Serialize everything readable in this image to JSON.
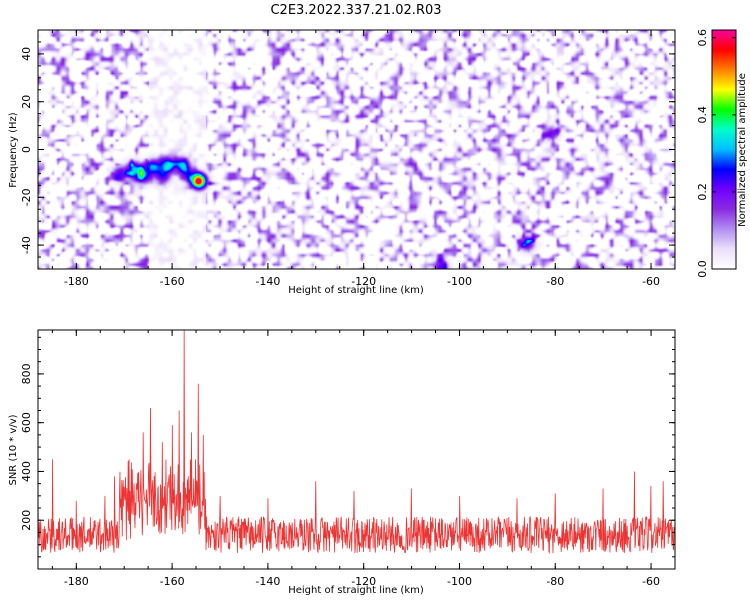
{
  "title": "C2E3.2022.337.21.02.R03",
  "chart_data": [
    {
      "type": "heatmap",
      "xlabel": "Height of straight line (km)",
      "ylabel": "Frequency (Hz)",
      "xlim": [
        -188,
        -55
      ],
      "ylim": [
        -50,
        50
      ],
      "x_ticks": [
        -180,
        -160,
        -140,
        -120,
        -100,
        -80,
        -60
      ],
      "y_ticks": [
        -40,
        -20,
        0,
        20,
        40
      ],
      "colorbar": {
        "label": "Normalized spectral amplitude",
        "range": [
          0.0,
          0.62
        ],
        "ticks": [
          "0.0",
          "0.2",
          "0.4",
          "0.6"
        ],
        "colors": [
          "#ffffff",
          "#ece0fa",
          "#b28ef0",
          "#8a2be2",
          "#6f00ff",
          "#0000ff",
          "#00bfff",
          "#00ffcc",
          "#00ff00",
          "#ffff00",
          "#ff8000",
          "#ff0000",
          "#ff00a0"
        ]
      },
      "background_level": 0.07,
      "clear_band_km": [
        -165,
        -153
      ],
      "hotspots": [
        {
          "x": -168,
          "y": -8,
          "amp": 0.3
        },
        {
          "x": -164,
          "y": -7,
          "amp": 0.28
        },
        {
          "x": -161,
          "y": -6,
          "amp": 0.3
        },
        {
          "x": -158,
          "y": -6,
          "amp": 0.26
        },
        {
          "x": -171,
          "y": -10,
          "amp": 0.22
        },
        {
          "x": -166,
          "y": -11,
          "amp": 0.26
        },
        {
          "x": -162,
          "y": -11,
          "amp": 0.22
        },
        {
          "x": -157,
          "y": -10,
          "amp": 0.2
        },
        {
          "x": -154.5,
          "y": -13,
          "amp": 0.6
        },
        {
          "x": -86,
          "y": -39,
          "amp": 0.25
        },
        {
          "x": -104,
          "y": -49,
          "amp": 0.22
        },
        {
          "x": -81,
          "y": 7,
          "amp": 0.18
        }
      ]
    },
    {
      "type": "line",
      "xlabel": "Height of straight line (km)",
      "ylabel": "SNR (10 * v/v)",
      "xlim": [
        -188,
        -55
      ],
      "ylim": [
        0,
        980
      ],
      "x_ticks": [
        -180,
        -160,
        -140,
        -120,
        -100,
        -80,
        -60
      ],
      "y_ticks": [
        200,
        400,
        600,
        800
      ],
      "color": "#ee3333",
      "baseline_snr": 140,
      "enhanced_region_km": [
        -171,
        -153
      ],
      "peaks": [
        {
          "x": -188,
          "y": 300
        },
        {
          "x": -185,
          "y": 450
        },
        {
          "x": -180,
          "y": 280
        },
        {
          "x": -174,
          "y": 300
        },
        {
          "x": -172,
          "y": 380
        },
        {
          "x": -169,
          "y": 450
        },
        {
          "x": -166,
          "y": 560
        },
        {
          "x": -164.5,
          "y": 660
        },
        {
          "x": -162,
          "y": 520
        },
        {
          "x": -160,
          "y": 590
        },
        {
          "x": -158.5,
          "y": 650
        },
        {
          "x": -157.5,
          "y": 980
        },
        {
          "x": -156,
          "y": 560
        },
        {
          "x": -154.5,
          "y": 760
        },
        {
          "x": -153.5,
          "y": 550
        },
        {
          "x": -150,
          "y": 300
        },
        {
          "x": -140,
          "y": 290
        },
        {
          "x": -130,
          "y": 360
        },
        {
          "x": -122,
          "y": 320
        },
        {
          "x": -110,
          "y": 330
        },
        {
          "x": -100,
          "y": 300
        },
        {
          "x": -88,
          "y": 290
        },
        {
          "x": -80,
          "y": 310
        },
        {
          "x": -70,
          "y": 330
        },
        {
          "x": -63.5,
          "y": 400
        },
        {
          "x": -60,
          "y": 340
        },
        {
          "x": -57.5,
          "y": 360
        }
      ]
    }
  ]
}
